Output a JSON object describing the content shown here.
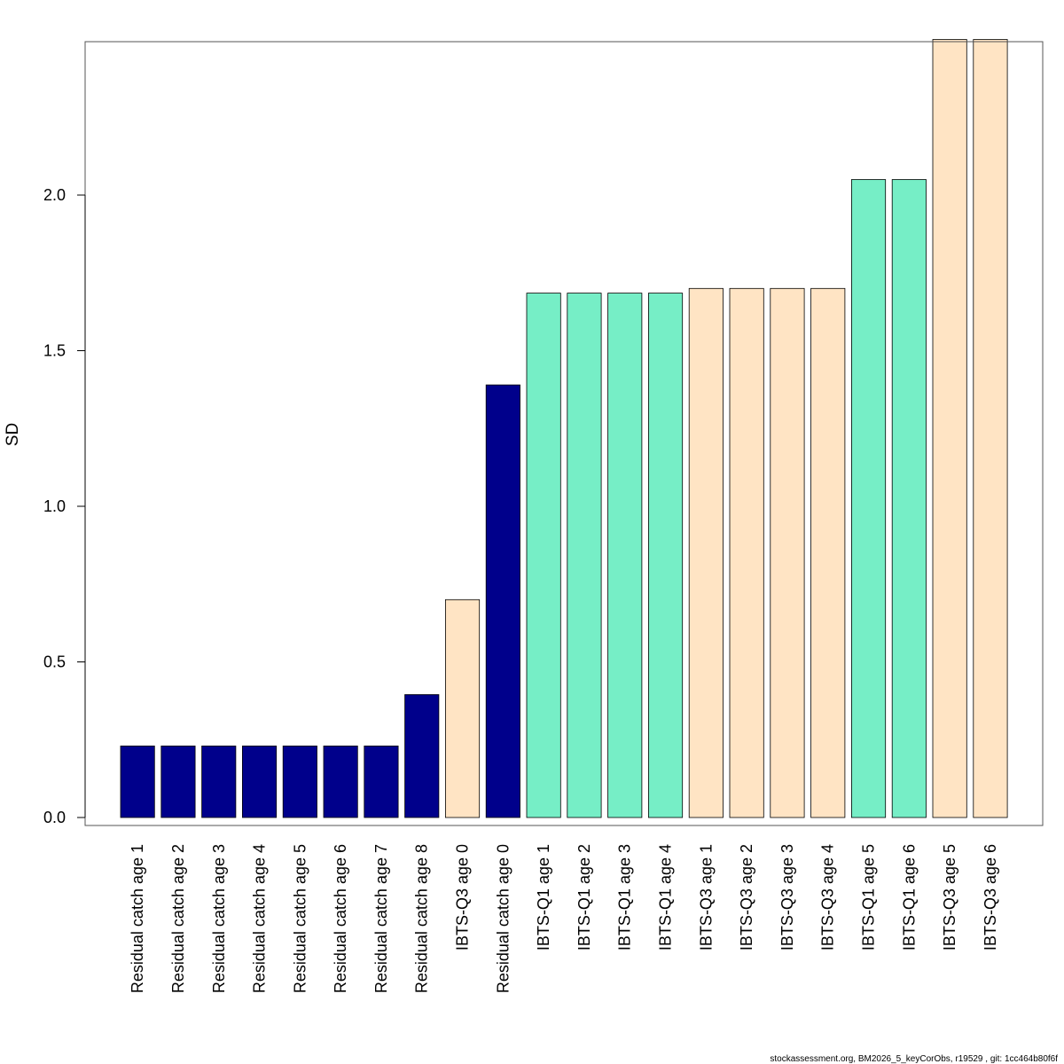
{
  "chart_data": {
    "type": "bar",
    "ylabel": "SD",
    "xlabel": "",
    "title": "",
    "ylim": [
      0,
      2.5
    ],
    "yticks": [
      0.0,
      0.5,
      1.0,
      1.5,
      2.0
    ],
    "ytick_labels": [
      "0.0",
      "0.5",
      "1.0",
      "1.5",
      "2.0"
    ],
    "grid": false,
    "legend": "none",
    "categories": [
      "Residual catch age 1",
      "Residual catch age 2",
      "Residual catch age 3",
      "Residual catch age 4",
      "Residual catch age 5",
      "Residual catch age 6",
      "Residual catch age 7",
      "Residual catch age 8",
      "IBTS-Q3 age 0",
      "Residual catch age 0",
      "IBTS-Q1 age 1",
      "IBTS-Q1 age 2",
      "IBTS-Q1 age 3",
      "IBTS-Q1 age 4",
      "IBTS-Q3 age 1",
      "IBTS-Q3 age 2",
      "IBTS-Q3 age 3",
      "IBTS-Q3 age 4",
      "IBTS-Q1 age 5",
      "IBTS-Q1 age 6",
      "IBTS-Q3 age 5",
      "IBTS-Q3 age 6"
    ],
    "values": [
      0.23,
      0.23,
      0.23,
      0.23,
      0.23,
      0.23,
      0.23,
      0.395,
      0.7,
      1.39,
      1.685,
      1.685,
      1.685,
      1.685,
      1.7,
      1.7,
      1.7,
      1.7,
      2.05,
      2.05,
      2.5,
      2.5
    ],
    "group_colors": {
      "Residual catch": "#00008B",
      "IBTS-Q1": "#76EEC6",
      "IBTS-Q3": "#FFE4C4"
    },
    "bar_border_color": "#000000"
  },
  "footer": {
    "note": "stockassessment.org, BM2026_5_keyCorObs, r19529 , git: 1cc464b80f6f"
  }
}
